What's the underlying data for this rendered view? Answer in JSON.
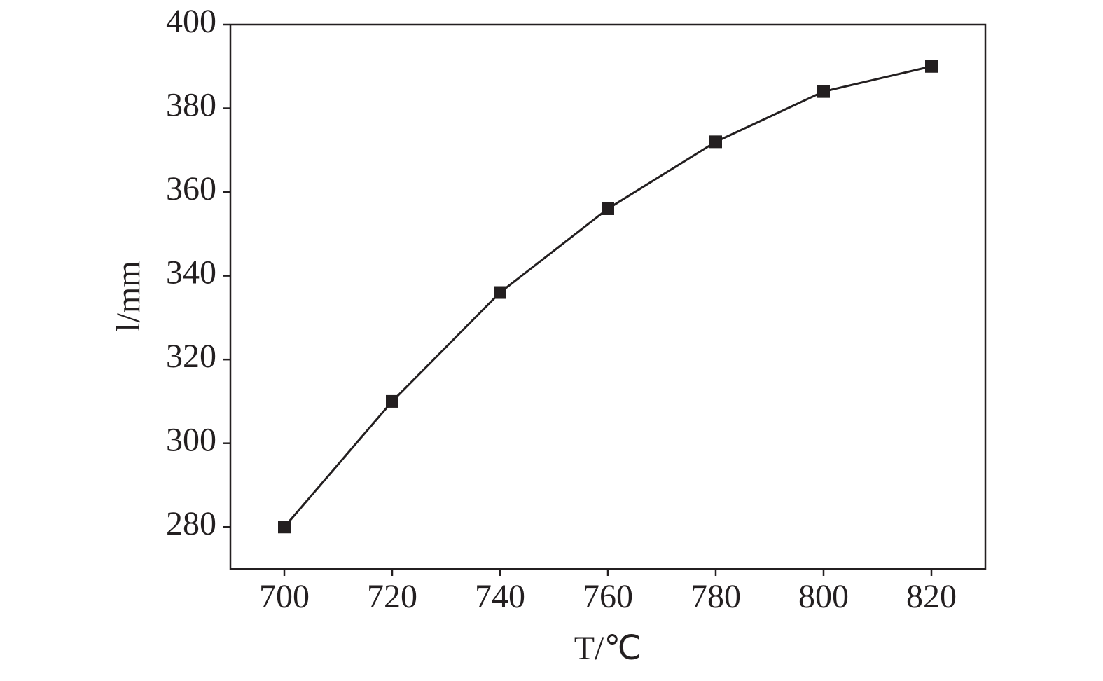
{
  "chart_data": {
    "type": "line",
    "xlabel": "T/℃",
    "ylabel": "l/mm",
    "x": [
      700,
      720,
      740,
      760,
      780,
      800,
      820
    ],
    "series": [
      {
        "color": "#231f20",
        "values": [
          280,
          310,
          336,
          356,
          372,
          384,
          390
        ]
      }
    ],
    "xlim": [
      690,
      830
    ],
    "xticks": [
      700,
      720,
      740,
      760,
      780,
      800,
      820
    ],
    "ylim": [
      270,
      400
    ],
    "yticks": [
      280,
      300,
      320,
      340,
      360,
      380,
      400
    ],
    "grid": false
  }
}
